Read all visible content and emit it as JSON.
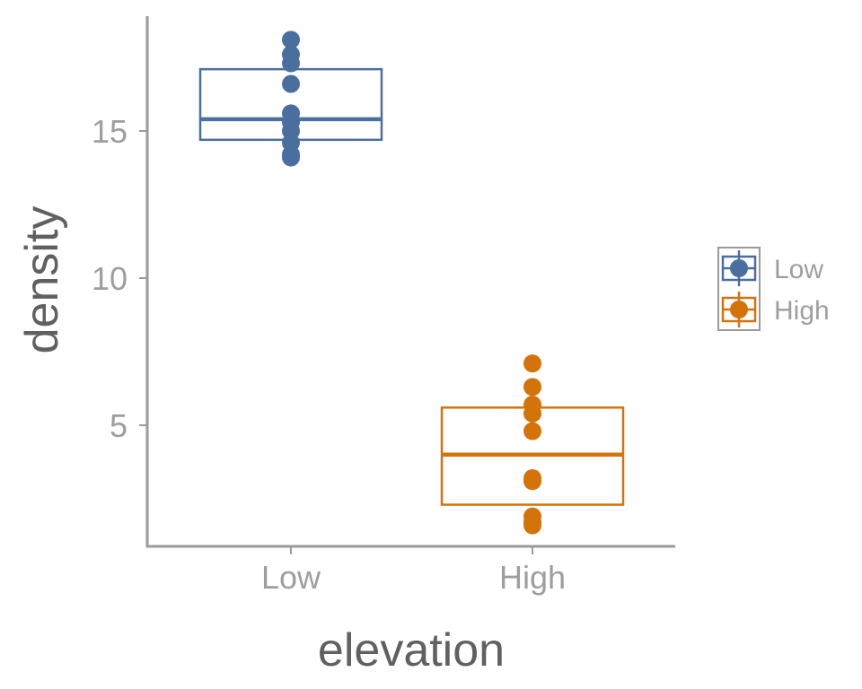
{
  "chart_data": {
    "type": "box",
    "title": "",
    "xlabel": "elevation",
    "ylabel": "density",
    "categories": [
      "Low",
      "High"
    ],
    "ylim": [
      1,
      19
    ],
    "yticks": [
      5,
      10,
      15
    ],
    "grid": false,
    "legend_position": "right",
    "series": [
      {
        "name": "Low",
        "color": "#4a6f9e",
        "box": {
          "q1": 14.7,
          "median": 15.4,
          "q3": 17.1
        },
        "points": [
          18.1,
          17.6,
          17.3,
          16.6,
          15.6,
          15.3,
          15.0,
          14.6,
          14.2,
          14.1
        ]
      },
      {
        "name": "High",
        "color": "#d4730a",
        "box": {
          "q1": 2.3,
          "median": 4.0,
          "q3": 5.6
        },
        "points": [
          7.1,
          6.3,
          5.7,
          5.4,
          4.8,
          3.2,
          3.1,
          1.9,
          1.7,
          1.6
        ]
      }
    ]
  }
}
